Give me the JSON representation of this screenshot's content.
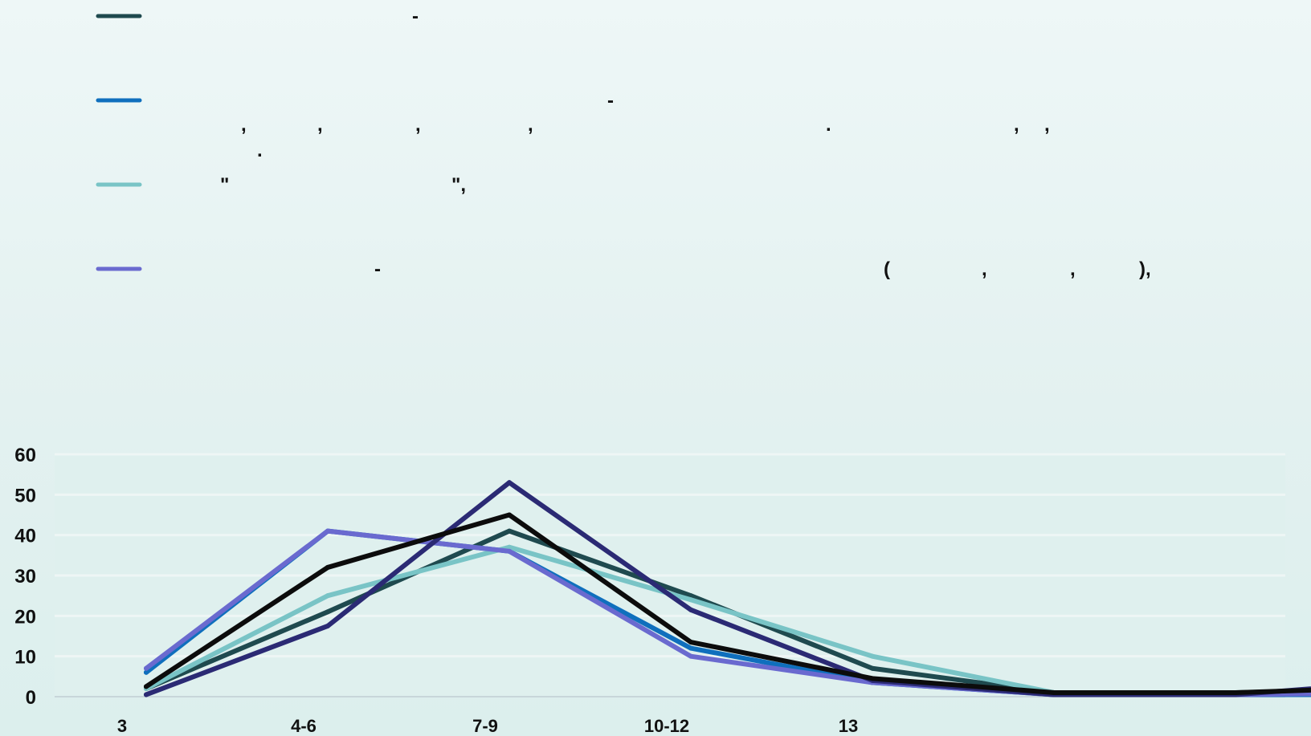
{
  "chart_data": {
    "type": "line",
    "categories": [
      "3",
      "4-6",
      "7-9",
      "10-12",
      "13",
      "",
      "",
      ""
    ],
    "ylim": [
      0,
      60
    ],
    "yticks": [
      0,
      10,
      20,
      30,
      40,
      50,
      60
    ],
    "grid": true,
    "legend_placement": "top-left",
    "series": [
      {
        "color": "#1f4a4f",
        "values": [
          2,
          21,
          41,
          25,
          7,
          1,
          1,
          2
        ]
      },
      {
        "color": "#0f6fbd",
        "values": [
          6,
          41,
          36,
          12,
          3.5,
          0.5,
          0.5,
          0.5
        ]
      },
      {
        "color": "#79c4c6",
        "values": [
          2,
          25,
          37,
          24,
          10,
          1,
          1,
          1
        ]
      },
      {
        "color": "#6a6acf",
        "values": [
          7,
          41,
          36,
          10,
          3.5,
          0.5,
          0.5,
          1
        ]
      },
      {
        "color": "#2b2a74",
        "values": [
          0.5,
          17.5,
          53,
          21.5,
          4,
          0.5,
          0.5,
          4
        ]
      },
      {
        "color": "#0c0c0c",
        "values": [
          2.5,
          32,
          45,
          13.5,
          4.5,
          1,
          1,
          2.5
        ]
      }
    ],
    "legend": [
      {
        "series_index": 0,
        "color": "#1f4a4f",
        "lines": [
          [
            "-"
          ]
        ]
      },
      {
        "series_index": 1,
        "color": "#0f6fbd",
        "lines": [
          [
            "-"
          ],
          [
            ",",
            ",",
            ",",
            ",",
            ".",
            ",",
            ","
          ],
          [
            "."
          ]
        ]
      },
      {
        "series_index": 2,
        "color": "#79c4c6",
        "lines": [
          [
            "\"",
            "\","
          ]
        ]
      },
      {
        "series_index": 3,
        "color": "#6a6acf",
        "lines": [
          [
            "-",
            "(",
            ",",
            ",",
            "),"
          ]
        ]
      }
    ]
  }
}
